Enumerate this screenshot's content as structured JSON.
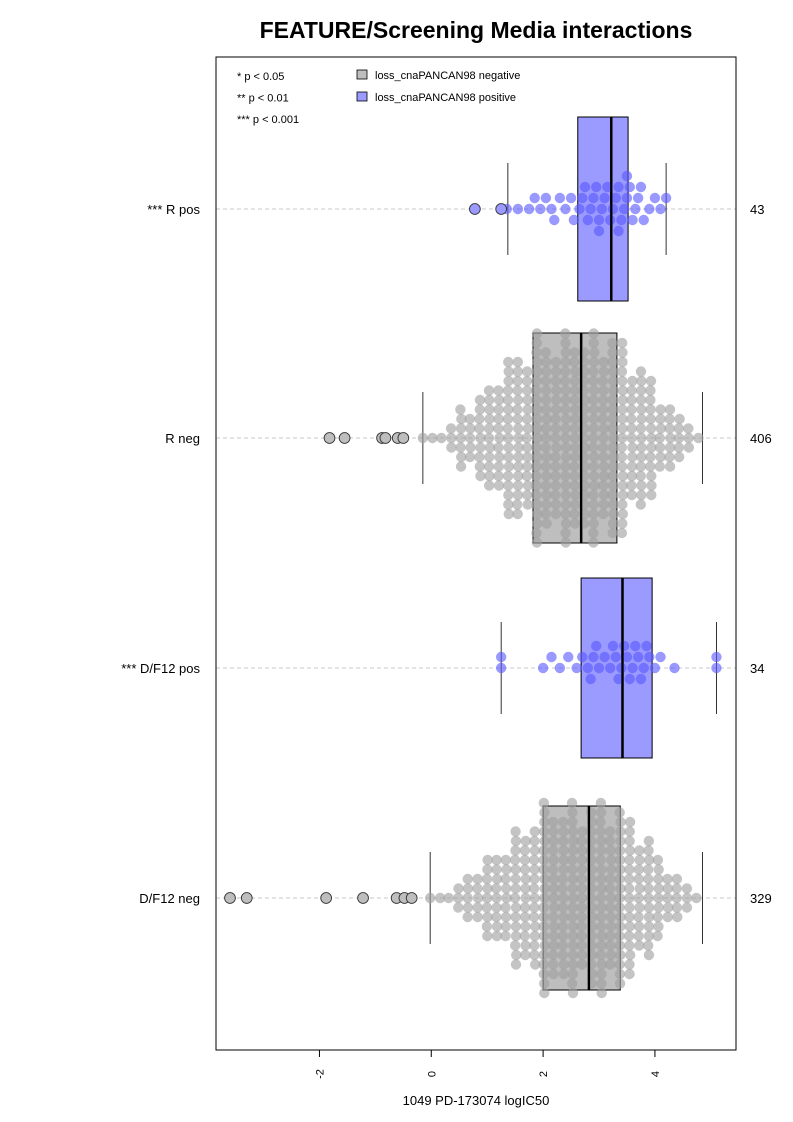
{
  "chart_data": {
    "type": "box-beeswarm",
    "title": "FEATURE/Screening Media interactions",
    "xlabel": "1049 PD-173074 logIC50",
    "ylabel": "",
    "xlim": [
      -3.85,
      5.45
    ],
    "x_ticks": [
      -2,
      0,
      2,
      4
    ],
    "x_tick_labels": [
      "-2",
      "0",
      "2",
      "4"
    ],
    "grid": false,
    "significance_legend": [
      "* p < 0.05",
      "** p < 0.01",
      "*** p < 0.001"
    ],
    "legend": [
      {
        "label": "loss_cnaPANCAN98 negative",
        "color": "#bebebe"
      },
      {
        "label": "loss_cnaPANCAN98 positive",
        "color": "#9a9aff"
      }
    ],
    "legend_placement": "top-left",
    "groups": [
      {
        "label": "*** R pos",
        "count": "43",
        "status": "positive",
        "box": {
          "q1": 2.62,
          "median": 3.22,
          "q3": 3.52,
          "whisker_low": 1.37,
          "whisker_high": 4.2
        },
        "outliers": [
          0.78,
          1.25
        ],
        "points": [
          1.35,
          1.55,
          1.75,
          1.85,
          1.95,
          2.05,
          2.15,
          2.2,
          2.3,
          2.4,
          2.5,
          2.55,
          2.65,
          2.7,
          2.8,
          2.85,
          2.9,
          2.95,
          3.0,
          3.05,
          3.1,
          3.15,
          3.2,
          3.25,
          3.3,
          3.35,
          3.4,
          3.45,
          3.5,
          3.55,
          3.6,
          3.65,
          3.7,
          3.75,
          3.8,
          3.9,
          4.0,
          4.1,
          4.2,
          3.35,
          3.0,
          2.75,
          3.5
        ]
      },
      {
        "label": "R neg",
        "count": "406",
        "status": "negative",
        "box": {
          "q1": 1.82,
          "median": 2.68,
          "q3": 3.32,
          "whisker_low": -0.15,
          "whisker_high": 4.85
        },
        "outliers": [
          -1.82,
          -1.55,
          -0.88,
          -0.82,
          -0.6,
          -0.5
        ],
        "points": []
      },
      {
        "label": "*** D/F12 pos",
        "count": "34",
        "status": "positive",
        "box": {
          "q1": 2.68,
          "median": 3.42,
          "q3": 3.95,
          "whisker_low": 1.25,
          "whisker_high": 5.1
        },
        "outliers": [],
        "points": [
          1.25,
          1.25,
          2.0,
          2.15,
          2.3,
          2.45,
          2.6,
          2.7,
          2.8,
          2.85,
          2.9,
          3.0,
          3.1,
          3.2,
          3.3,
          3.35,
          3.4,
          3.45,
          3.5,
          3.55,
          3.6,
          3.65,
          3.7,
          3.75,
          3.8,
          3.85,
          3.9,
          4.0,
          4.1,
          4.35,
          5.1,
          5.1,
          3.25,
          2.95
        ]
      },
      {
        "label": "D/F12 neg",
        "count": "329",
        "status": "negative",
        "box": {
          "q1": 2.0,
          "median": 2.82,
          "q3": 3.38,
          "whisker_low": -0.02,
          "whisker_high": 4.85
        },
        "outliers": [
          -3.6,
          -3.3,
          -1.88,
          -1.22,
          -0.62,
          -0.48,
          -0.35
        ],
        "points": []
      }
    ]
  }
}
